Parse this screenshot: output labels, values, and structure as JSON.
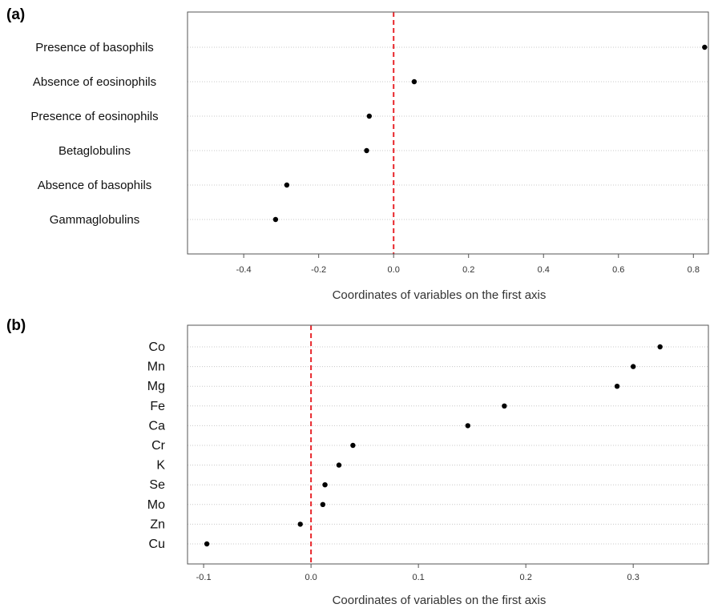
{
  "chart_data": [
    {
      "type": "scatter",
      "panel_label": "(a)",
      "categories": [
        "Presence of basophils",
        "Absence of eosinophils",
        "Presence of eosinophils",
        "Betaglobulins",
        "Absence of basophils",
        "Gammaglobulins"
      ],
      "values": [
        0.83,
        0.055,
        -0.065,
        -0.072,
        -0.285,
        -0.315
      ],
      "xlabel": "Coordinates of variables on the first axis",
      "ylabel": "",
      "xlim": [
        -0.55,
        0.84
      ],
      "xticks": [
        "-0.4",
        "-0.2",
        "0.0",
        "0.2",
        "0.4",
        "0.6",
        "0.8"
      ],
      "reference_line": 0,
      "reference_line_color": "#e8262b",
      "grid": "horizontal-dotted"
    },
    {
      "type": "scatter",
      "panel_label": "(b)",
      "categories": [
        "Co",
        "Mn",
        "Mg",
        "Fe",
        "Ca",
        "Cr",
        "K",
        "Se",
        "Mo",
        "Zn",
        "Cu"
      ],
      "values": [
        0.325,
        0.3,
        0.285,
        0.18,
        0.146,
        0.039,
        0.026,
        0.013,
        0.011,
        -0.01,
        -0.097
      ],
      "xlabel": "Coordinates of variables on the first axis",
      "ylabel": "",
      "xlim": [
        -0.115,
        0.37
      ],
      "xticks": [
        "-0.1",
        "0.0",
        "0.1",
        "0.2",
        "0.3"
      ],
      "reference_line": 0,
      "reference_line_color": "#e8262b",
      "grid": "horizontal-dotted"
    }
  ]
}
